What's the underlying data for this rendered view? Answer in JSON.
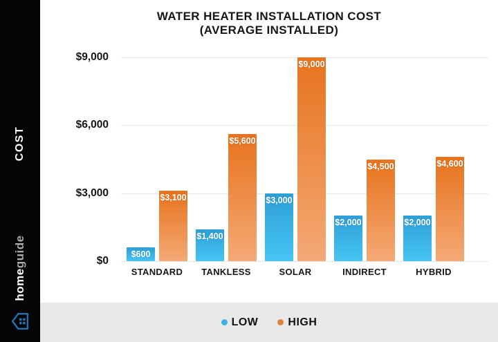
{
  "sidebar": {
    "vertical_label": "COST",
    "brand": {
      "bold": "home",
      "light": "guide"
    },
    "logo_color": "#1f74b0"
  },
  "title": {
    "line1": "WATER HEATER INSTALLATION COST",
    "line2": "(AVERAGE INSTALLED)"
  },
  "chart_data": {
    "type": "bar",
    "title": "WATER HEATER INSTALLATION COST (AVERAGE INSTALLED)",
    "categories": [
      "STANDARD",
      "TANKLESS",
      "SOLAR",
      "INDIRECT",
      "HYBRID"
    ],
    "series": [
      {
        "name": "LOW",
        "values": [
          600,
          1400,
          3000,
          2000,
          2000
        ],
        "labels": [
          "$600",
          "$1,400",
          "$3,000",
          "$2,000",
          "$2,000"
        ],
        "color_top": "#2e9ed7",
        "color_bottom": "#47c5f3"
      },
      {
        "name": "HIGH",
        "values": [
          3100,
          5600,
          9000,
          4500,
          4600
        ],
        "labels": [
          "$3,100",
          "$5,600",
          "$9,000",
          "$4,500",
          "$4,600"
        ],
        "color_top": "#e7731d",
        "color_bottom": "#f4a976"
      }
    ],
    "y_ticks": [
      {
        "value": 9000,
        "label": "$9,000"
      },
      {
        "value": 6000,
        "label": "$6,000"
      },
      {
        "value": 3000,
        "label": "$3,000"
      },
      {
        "value": 0,
        "label": "$0"
      }
    ],
    "ylim": [
      0,
      9000
    ],
    "grid": true,
    "legend_position": "bottom"
  },
  "legend": {
    "items": [
      {
        "label": "LOW",
        "color": "#3ab2e4"
      },
      {
        "label": "HIGH",
        "color": "#e0813f"
      }
    ]
  }
}
